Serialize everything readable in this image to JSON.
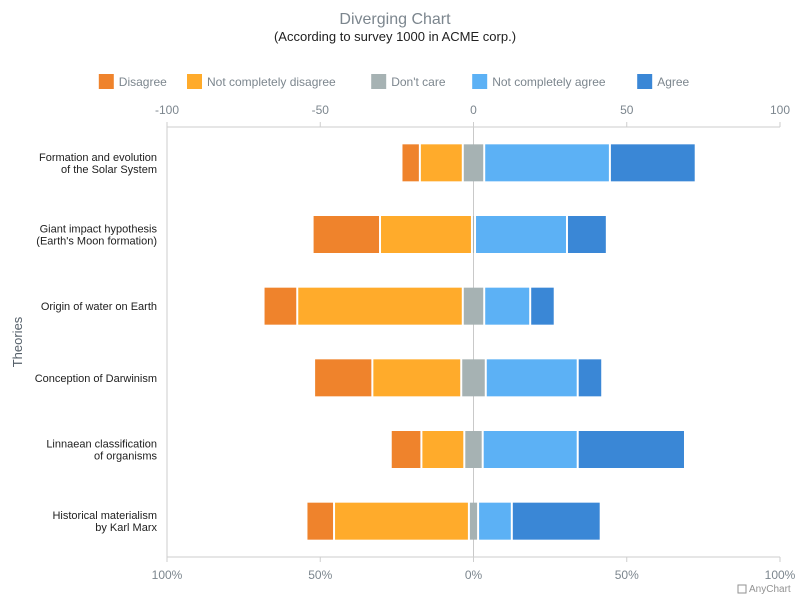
{
  "chart_data": {
    "type": "bar",
    "orientation": "horizontal",
    "stacked": "diverging",
    "title": "Diverging Chart",
    "subtitle": "(According to survey 1000 in ACME corp.)",
    "ylabel": "Theories",
    "top_axis": {
      "range": [
        -100,
        100
      ],
      "ticks": [
        "-100",
        "-50",
        "0",
        "50",
        "100"
      ]
    },
    "bottom_axis": {
      "range": [
        -100,
        100
      ],
      "ticks": [
        "100%",
        "50%",
        "0%",
        "50%",
        "100%"
      ]
    },
    "categories": [
      "Formation and evolution\nof the Solar System",
      "Giant impact hypothesis\n(Earth's Moon formation)",
      "Origin of water on Earth",
      "Conception of Darwinism",
      "Linnaean classification\nof organisms",
      "Historical materialism\nby Karl Marx"
    ],
    "series": [
      {
        "name": "Disagree",
        "color": "#ef832c",
        "side": "negative",
        "values": [
          6,
          22,
          11,
          19,
          10,
          9
        ]
      },
      {
        "name": "Not completely disagree",
        "color": "#ffab2b",
        "side": "negative",
        "values": [
          14,
          30,
          54,
          29,
          14,
          44
        ]
      },
      {
        "name": "Don't care",
        "color": "#a6b2b3",
        "side": "center",
        "values": [
          7,
          1,
          7,
          8,
          6,
          3
        ]
      },
      {
        "name": "Not completely agree",
        "color": "#5cb1f5",
        "side": "positive",
        "values": [
          41,
          30,
          15,
          30,
          31,
          11
        ]
      },
      {
        "name": "Agree",
        "color": "#3a87d6",
        "side": "positive",
        "values": [
          28,
          13,
          8,
          8,
          35,
          29
        ]
      }
    ],
    "legend_position": "top"
  },
  "credit": "AnyChart"
}
